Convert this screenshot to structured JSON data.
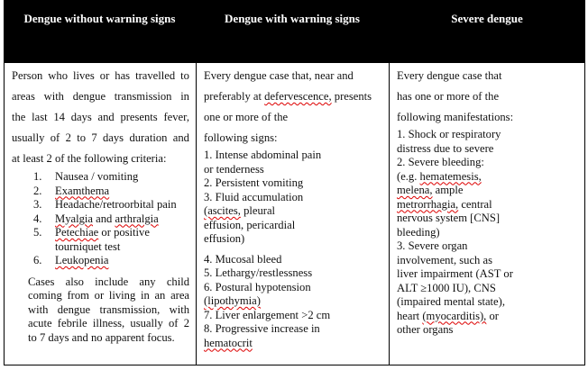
{
  "headers": [
    "Dengue without warning signs",
    "Dengue with warning signs",
    "Severe dengue"
  ],
  "misspelled": [
    "Examthema",
    "retroorbital",
    "Myalgia",
    "arthralgia",
    "Petechiae",
    "Leukopenia",
    "defervescence,",
    "(ascites,",
    "(lipothymia)",
    "hematocrit",
    "hematemesis,",
    "melena,",
    "metrorrhagia,",
    "(myocarditis),"
  ],
  "columns": [
    {
      "intro": [
        "Person who lives or  has travelled to",
        "areas with dengue transmission in",
        "the last 14 days and presents fever,",
        "usually of 2  to 7 days duration and",
        "at least 2 of the following criteria:"
      ],
      "list": [
        {
          "num": "1.",
          "lines": [
            "Nausea / vomiting"
          ]
        },
        {
          "num": "2.",
          "lines": [
            "Examthema"
          ]
        },
        {
          "num": "3.",
          "lines": [
            "Headache/retroorbital pain"
          ]
        },
        {
          "num": "4.",
          "lines": [
            "Myalgia and arthralgia"
          ]
        },
        {
          "num": "5.",
          "lines": [
            "Petechiae or positive",
            "tourniquet test"
          ]
        },
        {
          "num": "6.",
          "lines": [
            "Leukopenia"
          ]
        }
      ],
      "note": [
        "Cases also include any child",
        "coming from or living in an area",
        "with dengue transmission, with",
        "acute febrile illness, usually of 2",
        "to 7 days and no apparent focus."
      ]
    },
    {
      "intro": [
        "Every dengue case that, near and",
        "preferably at defervescence, presents",
        "one or more of the",
        "following signs:"
      ],
      "signs_a": [
        "1. Intense abdominal pain",
        "or tenderness",
        "2. Persistent  vomiting",
        "3. Fluid  accumulation",
        "(ascites, pleural",
        "effusion, pericardial",
        "effusion)"
      ],
      "signs_b": [
        "4. Mucosal bleed",
        "5. Lethargy/restlessness",
        "6. Postural hypotension",
        "(lipothymia)",
        "7. Liver  enlargement >2 cm",
        "8. Progressive  increase in",
        "hematocrit"
      ]
    },
    {
      "intro": [
        "Every dengue case that",
        "has one or more of the",
        "following manifestations:"
      ],
      "items": [
        "1. Shock or respiratory",
        "distress due to severe",
        "2. Severe bleeding:",
        " (e.g.  hematemesis,",
        "melena, ample",
        "metrorrhagia, central",
        "nervous system [CNS]",
        "bleeding)",
        "3. Severe  organ",
        "involvement, such as",
        "liver impairment (AST  or",
        "ALT ≥1000 IU), CNS",
        "(impaired mental state),",
        "heart (myocarditis), or",
        "other organs"
      ]
    }
  ]
}
